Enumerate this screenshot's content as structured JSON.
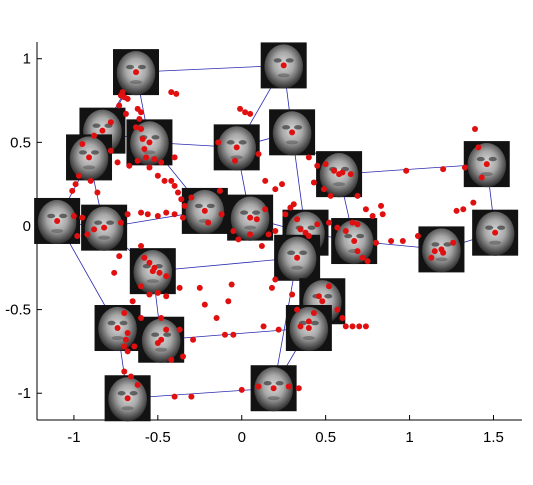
{
  "chart_data": {
    "type": "scatter",
    "title": "",
    "xlabel": "",
    "ylabel": "",
    "xlim": [
      -1.22,
      1.67
    ],
    "ylim": [
      -1.16,
      1.1
    ],
    "xticks": [
      {
        "value": -1,
        "label": "-1"
      },
      {
        "value": -0.5,
        "label": "-0.5"
      },
      {
        "value": 0,
        "label": "0"
      },
      {
        "value": 0.5,
        "label": "0.5"
      },
      {
        "value": 1,
        "label": "1"
      },
      {
        "value": 1.5,
        "label": "1.5"
      }
    ],
    "yticks": [
      {
        "value": 1,
        "label": "1"
      },
      {
        "value": 0.5,
        "label": "0.5"
      },
      {
        "value": 0,
        "label": "0"
      },
      {
        "value": -0.5,
        "label": "-0.5"
      },
      {
        "value": -1,
        "label": "-1"
      }
    ],
    "grid": false,
    "point_color": "#e01010",
    "line_color": "#2a2ab0",
    "thumb_dark": "#121212",
    "thumb_light": "#d8d8d8",
    "faces": [
      {
        "x": -0.63,
        "y": 0.92
      },
      {
        "x": 0.25,
        "y": 0.96
      },
      {
        "x": -0.83,
        "y": 0.57
      },
      {
        "x": -0.55,
        "y": 0.5
      },
      {
        "x": -0.91,
        "y": 0.41
      },
      {
        "x": -0.03,
        "y": 0.47
      },
      {
        "x": 0.3,
        "y": 0.56
      },
      {
        "x": 0.58,
        "y": 0.31
      },
      {
        "x": 1.46,
        "y": 0.37
      },
      {
        "x": -1.1,
        "y": 0.03
      },
      {
        "x": -0.82,
        "y": -0.01
      },
      {
        "x": -0.22,
        "y": 0.09
      },
      {
        "x": 0.05,
        "y": 0.05
      },
      {
        "x": 0.38,
        "y": -0.04
      },
      {
        "x": 0.67,
        "y": -0.09
      },
      {
        "x": 1.19,
        "y": -0.14
      },
      {
        "x": 1.51,
        "y": -0.04
      },
      {
        "x": -0.53,
        "y": -0.27
      },
      {
        "x": 0.33,
        "y": -0.19
      },
      {
        "x": 0.48,
        "y": -0.45
      },
      {
        "x": -0.74,
        "y": -0.61
      },
      {
        "x": -0.48,
        "y": -0.68
      },
      {
        "x": 0.4,
        "y": -0.61
      },
      {
        "x": -0.68,
        "y": -1.03
      },
      {
        "x": 0.19,
        "y": -0.97
      }
    ],
    "edges": [
      [
        0,
        1
      ],
      [
        0,
        2
      ],
      [
        0,
        3
      ],
      [
        1,
        6
      ],
      [
        1,
        5
      ],
      [
        2,
        4
      ],
      [
        2,
        3
      ],
      [
        3,
        5
      ],
      [
        5,
        6
      ],
      [
        6,
        7
      ],
      [
        7,
        8
      ],
      [
        4,
        10
      ],
      [
        9,
        10
      ],
      [
        10,
        11
      ],
      [
        11,
        12
      ],
      [
        12,
        13
      ],
      [
        13,
        14
      ],
      [
        14,
        15
      ],
      [
        15,
        16
      ],
      [
        8,
        16
      ],
      [
        10,
        17
      ],
      [
        17,
        18
      ],
      [
        18,
        19
      ],
      [
        13,
        18
      ],
      [
        17,
        21
      ],
      [
        20,
        21
      ],
      [
        21,
        22
      ],
      [
        19,
        22
      ],
      [
        20,
        23
      ],
      [
        23,
        24
      ],
      [
        22,
        24
      ],
      [
        9,
        20
      ],
      [
        12,
        5
      ],
      [
        3,
        11
      ],
      [
        6,
        13
      ],
      [
        7,
        14
      ],
      [
        0,
        9
      ],
      [
        18,
        24
      ]
    ],
    "points": [
      [
        -0.7,
        0.77
      ],
      [
        -0.71,
        0.8
      ],
      [
        -0.72,
        0.78
      ],
      [
        -0.68,
        0.76
      ],
      [
        -0.73,
        0.72
      ],
      [
        -0.69,
        0.67
      ],
      [
        -0.78,
        0.62
      ],
      [
        -0.62,
        0.7
      ],
      [
        -0.61,
        0.64
      ],
      [
        -0.6,
        0.58
      ],
      [
        -0.59,
        0.52
      ],
      [
        -0.58,
        0.46
      ],
      [
        -0.57,
        0.41
      ],
      [
        -0.55,
        0.35
      ],
      [
        -0.6,
        0.68
      ],
      [
        -0.63,
        0.59
      ],
      [
        -0.42,
        0.8
      ],
      [
        -0.39,
        0.79
      ],
      [
        -0.88,
        0.54
      ],
      [
        -0.95,
        0.49
      ],
      [
        -0.97,
        0.3
      ],
      [
        -0.99,
        0.25
      ],
      [
        -1.01,
        0.21
      ],
      [
        -0.9,
        0.27
      ],
      [
        -0.86,
        0.2
      ],
      [
        -0.78,
        0.45
      ],
      [
        -0.74,
        0.38
      ],
      [
        -0.67,
        0.36
      ],
      [
        -0.62,
        0.39
      ],
      [
        -0.52,
        0.4
      ],
      [
        -0.48,
        0.38
      ],
      [
        -0.4,
        0.41
      ],
      [
        -0.5,
        0.3
      ],
      [
        -0.46,
        0.27
      ],
      [
        -0.42,
        0.27
      ],
      [
        -0.4,
        0.24
      ],
      [
        -0.38,
        0.2
      ],
      [
        -0.36,
        0.16
      ],
      [
        -0.34,
        0.12
      ],
      [
        -0.3,
        0.17
      ],
      [
        -0.01,
        0.7
      ],
      [
        0.02,
        0.68
      ],
      [
        0.05,
        0.67
      ],
      [
        -0.14,
        0.5
      ],
      [
        -0.04,
        0.39
      ],
      [
        0.1,
        0.43
      ],
      [
        0.14,
        0.27
      ],
      [
        0.2,
        0.22
      ],
      [
        0.4,
        0.41
      ],
      [
        0.45,
        0.36
      ],
      [
        0.5,
        0.37
      ],
      [
        0.55,
        0.33
      ],
      [
        0.6,
        0.32
      ],
      [
        0.65,
        0.31
      ],
      [
        0.43,
        0.26
      ],
      [
        0.49,
        0.22
      ],
      [
        0.53,
        0.18
      ],
      [
        0.69,
        0.18
      ],
      [
        0.74,
        0.1
      ],
      [
        0.98,
        0.33
      ],
      [
        1.2,
        0.34
      ],
      [
        1.33,
        0.35
      ],
      [
        1.39,
        0.58
      ],
      [
        1.41,
        0.47
      ],
      [
        1.43,
        0.29
      ],
      [
        1.38,
        0.14
      ],
      [
        1.32,
        0.1
      ],
      [
        1.28,
        0.09
      ],
      [
        -1.0,
        0.06
      ],
      [
        -0.95,
        0.05
      ],
      [
        -0.98,
        -0.06
      ],
      [
        -0.92,
        -0.05
      ],
      [
        -0.88,
        -0.02
      ],
      [
        -0.72,
        0.02
      ],
      [
        -0.68,
        0.07
      ],
      [
        -0.6,
        0.08
      ],
      [
        -0.56,
        0.07
      ],
      [
        -0.5,
        0.06
      ],
      [
        -0.45,
        0.08
      ],
      [
        -0.4,
        0.07
      ],
      [
        -0.35,
        0.05
      ],
      [
        -0.2,
        0.02
      ],
      [
        -0.12,
        0.07
      ],
      [
        -0.05,
        -0.03
      ],
      [
        -0.02,
        -0.08
      ],
      [
        0.05,
        -0.05
      ],
      [
        0.09,
        0.04
      ],
      [
        0.14,
        0.1
      ],
      [
        0.16,
        -0.05
      ],
      [
        0.12,
        -0.12
      ],
      [
        0.2,
        -0.03
      ],
      [
        0.26,
        0.07
      ],
      [
        0.29,
        0.11
      ],
      [
        0.31,
        0.13
      ],
      [
        0.33,
        0.04
      ],
      [
        0.35,
        -0.02
      ],
      [
        0.4,
        -0.06
      ],
      [
        0.45,
        0.01
      ],
      [
        0.52,
        0.02
      ],
      [
        0.57,
        -0.01
      ],
      [
        0.62,
        -0.03
      ],
      [
        0.66,
        0.02
      ],
      [
        0.69,
        -0.15
      ],
      [
        0.72,
        -0.19
      ],
      [
        0.75,
        -0.21
      ],
      [
        0.8,
        -0.1
      ],
      [
        0.84,
        0.07
      ],
      [
        0.89,
        -0.09
      ],
      [
        0.96,
        -0.09
      ],
      [
        1.05,
        -0.06
      ],
      [
        1.15,
        -0.15
      ],
      [
        1.13,
        -0.19
      ],
      [
        1.2,
        -0.16
      ],
      [
        1.26,
        -0.1
      ],
      [
        0.78,
        0.06
      ],
      [
        0.83,
        0.12
      ],
      [
        0.69,
        0.01
      ],
      [
        -0.6,
        -0.12
      ],
      [
        -0.58,
        -0.19
      ],
      [
        -0.55,
        -0.22
      ],
      [
        -0.52,
        -0.25
      ],
      [
        -0.49,
        -0.28
      ],
      [
        -0.45,
        -0.3
      ],
      [
        -0.6,
        -0.36
      ],
      [
        -0.55,
        -0.41
      ],
      [
        -0.5,
        -0.4
      ],
      [
        -0.45,
        -0.42
      ],
      [
        -0.37,
        -0.37
      ],
      [
        -0.65,
        -0.45
      ],
      [
        -0.6,
        -0.55
      ],
      [
        -0.7,
        -0.52
      ],
      [
        -0.76,
        -0.28
      ],
      [
        -0.73,
        -0.18
      ],
      [
        -0.25,
        -0.37
      ],
      [
        -0.22,
        -0.47
      ],
      [
        -0.15,
        -0.55
      ],
      [
        -0.08,
        -0.45
      ],
      [
        -0.06,
        -0.35
      ],
      [
        0.18,
        -0.37
      ],
      [
        0.2,
        -0.32
      ],
      [
        0.3,
        -0.41
      ],
      [
        0.33,
        -0.5
      ],
      [
        0.35,
        -0.6
      ],
      [
        0.4,
        -0.57
      ],
      [
        0.43,
        -0.52
      ],
      [
        0.46,
        -0.42
      ],
      [
        0.52,
        -0.36
      ],
      [
        0.57,
        -0.5
      ],
      [
        0.6,
        -0.55
      ],
      [
        0.62,
        -0.6
      ],
      [
        0.66,
        -0.6
      ],
      [
        0.7,
        -0.6
      ],
      [
        0.74,
        -0.6
      ],
      [
        -0.68,
        -0.64
      ],
      [
        -0.69,
        -0.68
      ],
      [
        -0.7,
        -0.72
      ],
      [
        -0.68,
        -0.75
      ],
      [
        -0.64,
        -0.72
      ],
      [
        -0.5,
        -0.7
      ],
      [
        -0.45,
        -0.62
      ],
      [
        -0.37,
        -0.62
      ],
      [
        -0.42,
        -0.8
      ],
      [
        -0.35,
        -0.78
      ],
      [
        -0.29,
        -0.68
      ],
      [
        -0.1,
        -0.65
      ],
      [
        -0.05,
        -0.65
      ],
      [
        0.13,
        -0.6
      ],
      [
        0.22,
        -0.62
      ],
      [
        -0.7,
        -0.87
      ],
      [
        -0.66,
        -0.9
      ],
      [
        -0.62,
        -0.95
      ],
      [
        -0.4,
        -1.02
      ],
      [
        -0.3,
        -1.02
      ],
      [
        0.0,
        -0.98
      ],
      [
        0.1,
        -0.96
      ],
      [
        0.28,
        -0.96
      ],
      [
        0.34,
        -0.97
      ],
      [
        -0.48,
        -0.55
      ],
      [
        0.24,
        0.25
      ],
      [
        -0.13,
        0.21
      ]
    ]
  }
}
